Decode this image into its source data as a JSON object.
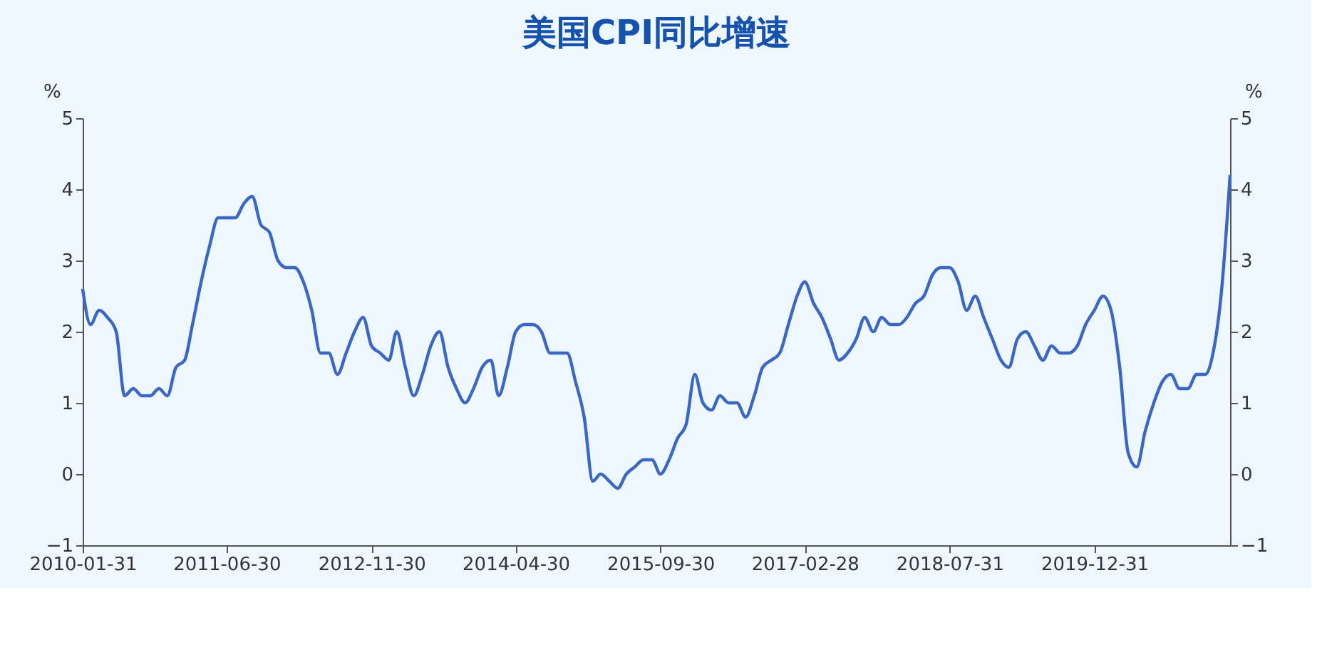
{
  "chart_data": {
    "type": "line",
    "title": "美国CPI同比增速",
    "ylabel": "%",
    "y2label": "%",
    "x": [
      "2010-01-31",
      "2010-02-28",
      "2010-03-31",
      "2010-04-30",
      "2010-05-31",
      "2010-06-30",
      "2010-07-31",
      "2010-08-31",
      "2010-09-30",
      "2010-10-31",
      "2010-11-30",
      "2010-12-31",
      "2011-01-31",
      "2011-02-28",
      "2011-03-31",
      "2011-04-30",
      "2011-05-31",
      "2011-06-30",
      "2011-07-31",
      "2011-08-31",
      "2011-09-30",
      "2011-10-31",
      "2011-11-30",
      "2011-12-31",
      "2012-01-31",
      "2012-02-29",
      "2012-03-31",
      "2012-04-30",
      "2012-05-31",
      "2012-06-30",
      "2012-07-31",
      "2012-08-31",
      "2012-09-30",
      "2012-10-31",
      "2012-11-30",
      "2012-12-31",
      "2013-01-31",
      "2013-02-28",
      "2013-03-31",
      "2013-04-30",
      "2013-05-31",
      "2013-06-30",
      "2013-07-31",
      "2013-08-31",
      "2013-09-30",
      "2013-10-31",
      "2013-11-30",
      "2013-12-31",
      "2014-01-31",
      "2014-02-28",
      "2014-03-31",
      "2014-04-30",
      "2014-05-31",
      "2014-06-30",
      "2014-07-31",
      "2014-08-31",
      "2014-09-30",
      "2014-10-31",
      "2014-11-30",
      "2014-12-31",
      "2015-01-31",
      "2015-02-28",
      "2015-03-31",
      "2015-04-30",
      "2015-05-31",
      "2015-06-30",
      "2015-07-31",
      "2015-08-31",
      "2015-09-30",
      "2015-10-31",
      "2015-11-30",
      "2015-12-31",
      "2016-01-31",
      "2016-02-29",
      "2016-03-31",
      "2016-04-30",
      "2016-05-31",
      "2016-06-30",
      "2016-07-31",
      "2016-08-31",
      "2016-09-30",
      "2016-10-31",
      "2016-11-30",
      "2016-12-31",
      "2017-01-31",
      "2017-02-28",
      "2017-03-31",
      "2017-04-30",
      "2017-05-31",
      "2017-06-30",
      "2017-07-31",
      "2017-08-31",
      "2017-09-30",
      "2017-10-31",
      "2017-11-30",
      "2017-12-31",
      "2018-01-31",
      "2018-02-28",
      "2018-03-31",
      "2018-04-30",
      "2018-05-31",
      "2018-06-30",
      "2018-07-31",
      "2018-08-31",
      "2018-09-30",
      "2018-10-31",
      "2018-11-30",
      "2018-12-31",
      "2019-01-31",
      "2019-02-28",
      "2019-03-31",
      "2019-04-30",
      "2019-05-31",
      "2019-06-30",
      "2019-07-31",
      "2019-08-31",
      "2019-09-30",
      "2019-10-31",
      "2019-11-30",
      "2019-12-31",
      "2020-01-31",
      "2020-02-29",
      "2020-03-31",
      "2020-04-30",
      "2020-05-31",
      "2020-06-30",
      "2020-07-31",
      "2020-08-31",
      "2020-09-30",
      "2020-10-31",
      "2020-11-30",
      "2020-12-31",
      "2021-01-31",
      "2021-02-28",
      "2021-03-31",
      "2021-04-30"
    ],
    "series": [
      {
        "color": "#3a66c4",
        "values": [
          2.6,
          2.1,
          2.3,
          2.2,
          2.0,
          1.1,
          1.2,
          1.1,
          1.1,
          1.2,
          1.1,
          1.5,
          1.6,
          2.1,
          2.7,
          3.2,
          3.6,
          3.6,
          3.6,
          3.8,
          3.9,
          3.5,
          3.4,
          3.0,
          2.9,
          2.9,
          2.7,
          2.3,
          1.7,
          1.7,
          1.4,
          1.7,
          2.0,
          2.2,
          1.8,
          1.7,
          1.6,
          2.0,
          1.5,
          1.1,
          1.4,
          1.8,
          2.0,
          1.5,
          1.2,
          1.0,
          1.2,
          1.5,
          1.6,
          1.1,
          1.5,
          2.0,
          2.1,
          2.1,
          2.0,
          1.7,
          1.7,
          1.7,
          1.3,
          0.8,
          -0.1,
          0.0,
          -0.1,
          -0.2,
          0.0,
          0.1,
          0.2,
          0.2,
          0.0,
          0.2,
          0.5,
          0.7,
          1.4,
          1.0,
          0.9,
          1.1,
          1.0,
          1.0,
          0.8,
          1.1,
          1.5,
          1.6,
          1.7,
          2.1,
          2.5,
          2.7,
          2.4,
          2.2,
          1.9,
          1.6,
          1.7,
          1.9,
          2.2,
          2.0,
          2.2,
          2.1,
          2.1,
          2.2,
          2.4,
          2.5,
          2.8,
          2.9,
          2.9,
          2.7,
          2.3,
          2.5,
          2.2,
          1.9,
          1.6,
          1.5,
          1.9,
          2.0,
          1.8,
          1.6,
          1.8,
          1.7,
          1.7,
          1.8,
          2.1,
          2.3,
          2.5,
          2.3,
          1.5,
          0.3,
          0.1,
          0.6,
          1.0,
          1.3,
          1.4,
          1.2,
          1.2,
          1.4,
          1.4,
          1.7,
          2.6,
          4.2
        ]
      }
    ],
    "xlim": [
      "2010-01-31",
      "2021-04-30"
    ],
    "xticks": [
      "2010-01-31",
      "2011-06-30",
      "2012-11-30",
      "2014-04-30",
      "2015-09-30",
      "2017-02-28",
      "2018-07-31",
      "2019-12-31"
    ],
    "ylim": [
      -1,
      5
    ],
    "yticks": [
      -1,
      0,
      1,
      2,
      3,
      4,
      5
    ],
    "y2lim": [
      -1,
      5
    ],
    "y2ticks": [
      -1,
      0,
      1,
      2,
      3,
      4,
      5
    ],
    "grid": false,
    "marker": "none",
    "line_style": "solid"
  }
}
